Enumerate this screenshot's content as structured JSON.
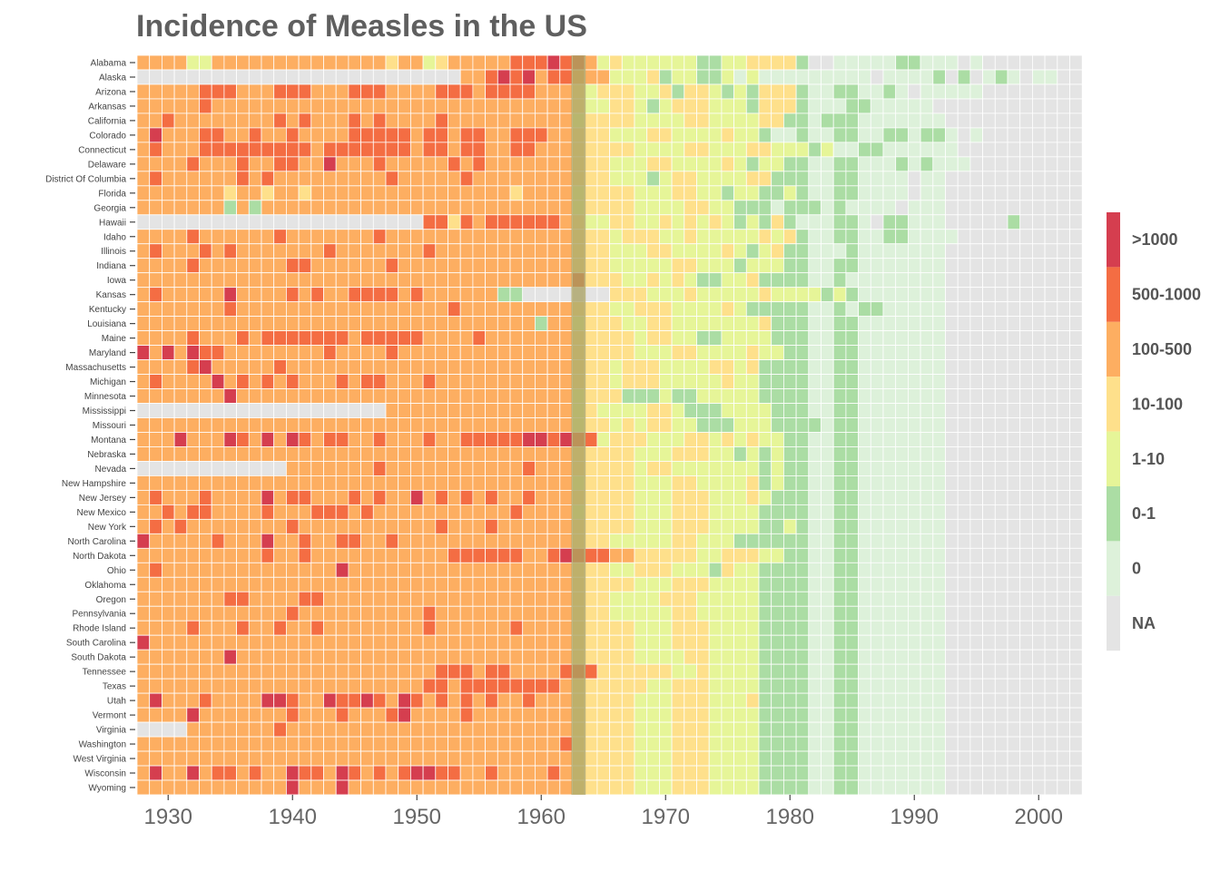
{
  "chart_data": {
    "type": "heatmap",
    "title": "Incidence of Measles in the US",
    "x_start": 1928,
    "x_end": 2003,
    "x_ticks": [
      "1930",
      "1940",
      "1950",
      "1960",
      "1970",
      "1980",
      "1990",
      "2000"
    ],
    "highlight_year": 1963,
    "highlight_color": "#a8a060",
    "states": [
      "Alabama",
      "Alaska",
      "Arizona",
      "Arkansas",
      "California",
      "Colorado",
      "Connecticut",
      "Delaware",
      "District Of Columbia",
      "Florida",
      "Georgia",
      "Hawaii",
      "Idaho",
      "Illinois",
      "Indiana",
      "Iowa",
      "Kansas",
      "Kentucky",
      "Louisiana",
      "Maine",
      "Maryland",
      "Massachusetts",
      "Michigan",
      "Minnesota",
      "Mississippi",
      "Missouri",
      "Montana",
      "Nebraska",
      "Nevada",
      "New Hampshire",
      "New Jersey",
      "New Mexico",
      "New York",
      "North Carolina",
      "North Dakota",
      "Ohio",
      "Oklahoma",
      "Oregon",
      "Pennsylvania",
      "Rhode Island",
      "South Carolina",
      "South Dakota",
      "Tennessee",
      "Texas",
      "Utah",
      "Vermont",
      "Virginia",
      "Washington",
      "West Virginia",
      "Wisconsin",
      "Wyoming"
    ],
    "legend": [
      {
        "label": ">1000",
        "color": "#d53e4f"
      },
      {
        "label": "500-1000",
        "color": "#f46d43"
      },
      {
        "label": "100-500",
        "color": "#fdae61"
      },
      {
        "label": "10-100",
        "color": "#fee08b"
      },
      {
        "label": "1-10",
        "color": "#e6f598"
      },
      {
        "label": "0-1",
        "color": "#abdda4"
      },
      {
        "label": "0",
        "color": "#ddf1da"
      },
      {
        "label": "NA",
        "color": "#e4e4e4"
      }
    ],
    "category_codes": "0 = >1000, 1 = 500-1000, 2 = 100-500, 3 = 10-100, 4 = 1-10, 5 = 0-1, 6 = 0, 7 = NA",
    "missing_before": {
      "Alaska": [
        1928,
        1953
      ],
      "Hawaii": [
        1928,
        1949
      ],
      "Mississippi": [
        1928,
        1946
      ],
      "Nevada": [
        1928,
        1940
      ],
      "Virginia": [
        1928,
        1931
      ],
      "Kansas": [
        1960,
        1966
      ]
    },
    "values": [
      "222244222222222222223224322222111011243444444554433335776666655666767777777",
      "777777777777777777777777772210102112224443544554646666666667666657576567667",
      "222221112221112221112222111211112223433344353345453335665566567666667777777",
      "222221222222222222222222222222222223443345433344453335666556666677777777777",
      "221222222221212221212222122222222224333344443344443355655566666667777777777",
      "202221122122122221111121121122111223334443344443445665665566556556767777777",
      "212221111111112111111121121122112223333344443344433444546655666666777777777",
      "222212221221122022212222212122222223334443344443454455665566656566677777777",
      "212222221212222222221222221222222223334445433444433555665566667667777777777",
      "222222232232232222222222222222322224333344433445445545665566667667777777777",
      "222222252522222222222222222222222224333344443344555655565666676667777777777",
      "777777777777777777777771131211111123443344343434545356665567556667777757777",
      "222212222221222222212222222222222223334333443444443435665566556666777777777",
      "212221212222222122222221222222222223334443344443454355666566666667777777777",
      "222212222222112222221222222222222223334444433444544455665566666667777777777",
      "222222222222222222222222222222222221333443434554435555665666666667777777777",
      "212222202222121221111212222225577777773334443444443444454566666667777777777",
      "222222212222222222222222212222222223334433344443455555665655666667777777777",
      "222222222222222222222222222222225224333443344444443555665566666667777777777",
      "222212221211111112111112222122222223333343344554444555665566666667777777777",
      "020201122222222122221222222222222223333344433444434455665566666667777777777",
      "222210222221222222222222222222222223334333444433435555665566666667777777777",
      "212222021212122212112221222222222223334333444443445555665566666667777777777",
      "222222202222222222222222222222222224333555455444445555665566666667777777777",
      "777777777777777777772222222222222224344443345554444555665566666667777777777",
      "222222222222222222222222222222222224334343344555444555565566666667777777777",
      "222022201202012112212221221111100101143334443343434455665566666667777777777",
      "222222222222222222222222222222222223333344433344545455665566666667777777777",
      "777777777777222222212222222222212223333343344444445455665566666667777777777",
      "222222222222222222222222222222222224333344433444435455665566666667777777777",
      "212221222202112221212202121212212223333344433344434555665566666667777777777",
      "221211222212221112122222222222122224333344433344445555665566666667777777777",
      "212122222222122222222222122212222223333344433344445545665566666667777777777",
      "022222122202212211221222222222222223334444433444555555665566666667777777777",
      "222222222212212222222222211111122101112233333443334455665566666667777777777",
      "212222222222222202222222222222222223334433344453445555665566666667777777777",
      "222222222222222222222222222222222223333344433344445555665566666667777777777",
      "222222211222211222222222222222222223334444333444445555665566666667777777777",
      "222222222222122222222221222222222223334444433444445555665566666667777777777",
      "222212221221221222222221222222122223333344433344445555665566666667777777777",
      "022222222222222222222222222222222223333344433344445555665566666667777777777",
      "222222202222222222222222222222222223333344443344445555665566666667777777777",
      "222222222222222222222222111211222211133333344344445555665566666667777777777",
      "222222222222222222222221121111111123333334433344445555665566666667777777777",
      "202221222200122011012012121212212223333344433344435555665566666667777777777",
      "222202222222122212221022221222222223333344433344445555665566666667777777777",
      "777722222221222222222222222222222223333344433344445555665566666667777777777",
      "222222222222222222222222222222222213333344433344445555665566666667777777777",
      "222222222222222222222222222222222223333344433344445555665566666667777777777",
      "202202112122011201212100112212222123333344433344445555665566666667777777777",
      "222222222222022202222222222222222223333344433344445555665566666667777777777"
    ]
  }
}
